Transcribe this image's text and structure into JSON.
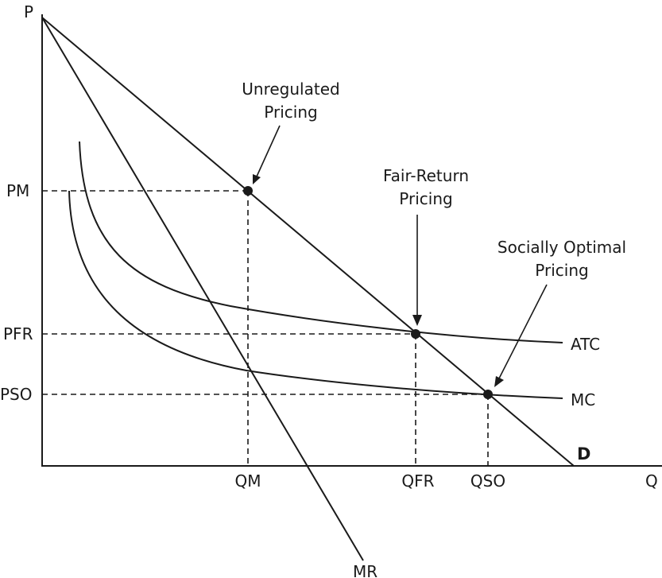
{
  "axes": {
    "y_label": "P",
    "x_label": "Q"
  },
  "price_labels": {
    "pm": "PM",
    "pfr": "PFR",
    "pso": "PSO"
  },
  "quantity_labels": {
    "qm": "QM",
    "qfr": "QFR",
    "qso": "QSO"
  },
  "curve_labels": {
    "demand": "D",
    "marginal_revenue": "MR",
    "average_total_cost": "ATC",
    "marginal_cost": "MC"
  },
  "annotations": {
    "unregulated": [
      "Unregulated",
      "Pricing"
    ],
    "fair_return": [
      "Fair-Return",
      "Pricing"
    ],
    "socially_optimal": [
      "Socially Optimal",
      "Pricing"
    ]
  },
  "colors": {
    "ink": "#1a1a1a",
    "background": "#ffffff"
  }
}
